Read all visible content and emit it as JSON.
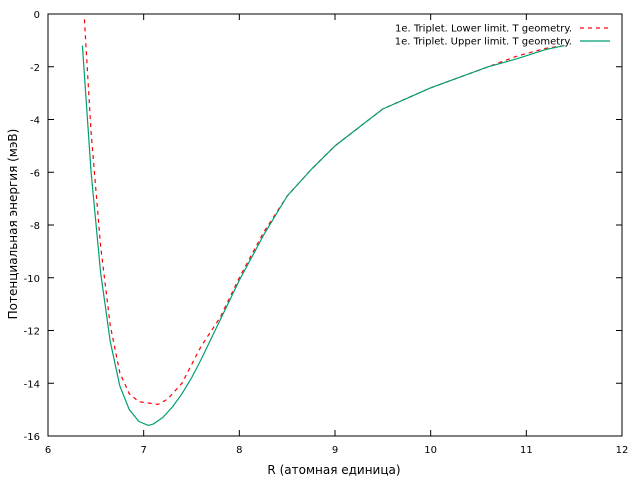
{
  "chart_data": {
    "type": "line",
    "title": "",
    "xlabel": "R (атомная единица)",
    "ylabel": "Потенциальная энергия (мэВ)",
    "xlim": [
      6,
      12
    ],
    "ylim": [
      -16,
      0
    ],
    "xticks": [
      6,
      7,
      8,
      9,
      10,
      11,
      12
    ],
    "yticks": [
      0,
      -2,
      -4,
      -6,
      -8,
      -10,
      -12,
      -14,
      -16
    ],
    "grid": false,
    "legend_position": "top-right",
    "series": [
      {
        "name": "1e. Triplet. Lower limit. T geometry.",
        "color": "#ff0000",
        "dash": "dashed",
        "x": [
          6.38,
          6.45,
          6.55,
          6.65,
          6.75,
          6.85,
          6.95,
          7.05,
          7.15,
          7.25,
          7.4,
          7.6,
          7.8,
          8.0,
          8.25,
          8.5,
          8.75,
          9.0,
          9.25,
          9.5,
          9.75,
          10.0,
          10.3,
          10.6,
          10.9,
          11.2,
          11.4
        ],
        "y": [
          -0.2,
          -4.5,
          -8.8,
          -11.8,
          -13.6,
          -14.4,
          -14.7,
          -14.75,
          -14.8,
          -14.6,
          -14.0,
          -12.6,
          -11.5,
          -10.0,
          -8.3,
          -6.9,
          -5.9,
          -5.0,
          -4.3,
          -3.6,
          -3.2,
          -2.8,
          -2.4,
          -2.0,
          -1.6,
          -1.3,
          -1.2
        ]
      },
      {
        "name": "1e. Triplet. Upper limit. T geometry.",
        "color": "#009e73",
        "dash": "solid",
        "x": [
          6.36,
          6.45,
          6.55,
          6.65,
          6.75,
          6.85,
          6.95,
          7.05,
          7.1,
          7.2,
          7.3,
          7.4,
          7.5,
          7.6,
          7.8,
          8.0,
          8.25,
          8.5,
          8.75,
          9.0,
          9.25,
          9.5,
          9.75,
          10.0,
          10.3,
          10.6,
          10.9,
          11.2,
          11.4
        ],
        "y": [
          -1.2,
          -6.0,
          -9.8,
          -12.4,
          -14.1,
          -15.0,
          -15.45,
          -15.6,
          -15.55,
          -15.3,
          -14.9,
          -14.4,
          -13.8,
          -13.1,
          -11.6,
          -10.1,
          -8.4,
          -6.9,
          -5.9,
          -5.0,
          -4.3,
          -3.6,
          -3.2,
          -2.8,
          -2.4,
          -2.0,
          -1.7,
          -1.35,
          -1.2
        ]
      }
    ]
  }
}
